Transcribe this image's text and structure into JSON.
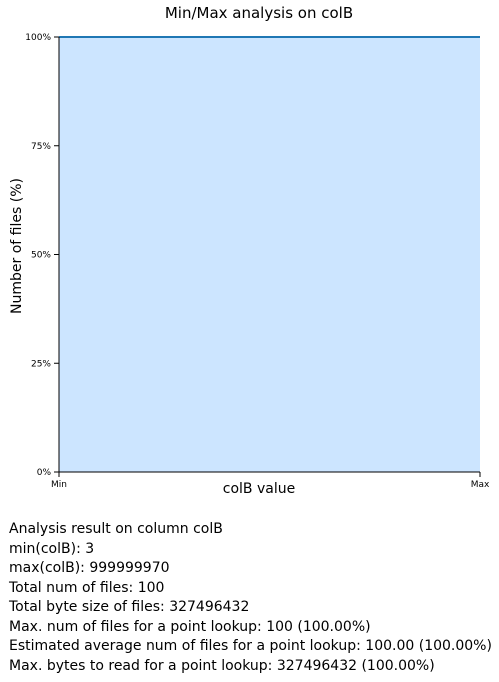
{
  "chart_data": {
    "type": "area",
    "title": "Min/Max analysis on colB",
    "xlabel": "colB value",
    "ylabel": "Number of files (%)",
    "x_categories": [
      "Min",
      "Max"
    ],
    "x": [
      0,
      1
    ],
    "y": [
      100,
      100
    ],
    "yticks": [
      "0%",
      "25%",
      "50%",
      "75%",
      "100%"
    ],
    "ytick_values": [
      0,
      25,
      50,
      75,
      100
    ],
    "ylim": [
      0,
      100
    ],
    "grid": false,
    "fill_color": "#cce5ff",
    "line_color": "#1f77b4"
  },
  "info": {
    "heading": "Analysis result on column colB",
    "lines": [
      "min(colB): 3",
      "max(colB): 999999970",
      "Total num of files: 100",
      "Total byte size of files: 327496432",
      "Max. num of files for a point lookup: 100 (100.00%)",
      "Estimated average num of files for a point lookup: 100.00 (100.00%)",
      "Max. bytes to read for a point lookup: 327496432 (100.00%)"
    ]
  }
}
